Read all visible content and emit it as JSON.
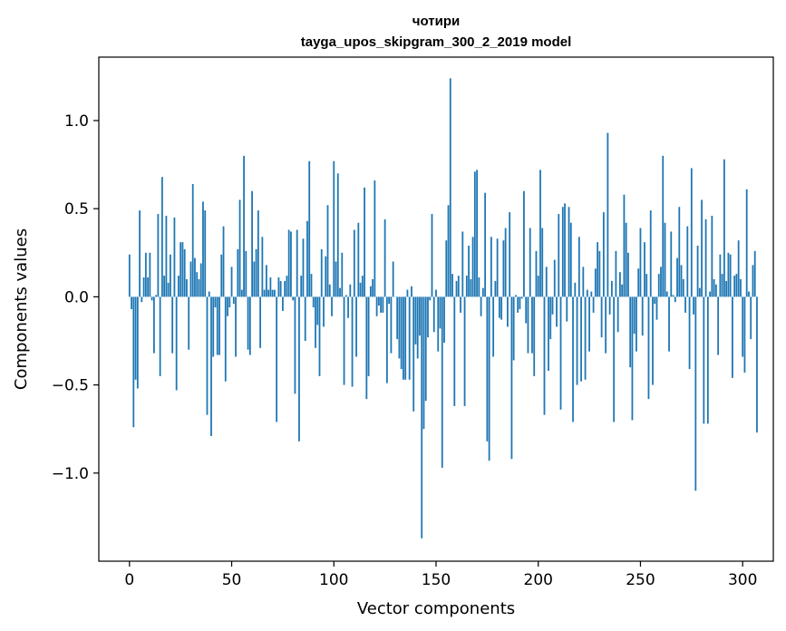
{
  "chart_data": {
    "type": "bar",
    "title": "чотири",
    "subtitle": "tayga_upos_skipgram_300_2_2019 model",
    "xlabel": "Vector components",
    "ylabel": "Components values",
    "xlim": [
      -15,
      315
    ],
    "ylim": [
      -1.5,
      1.36
    ],
    "xticks": [
      0,
      50,
      100,
      150,
      200,
      250,
      300
    ],
    "xtick_labels": [
      "0",
      "50",
      "100",
      "150",
      "200",
      "250",
      "300"
    ],
    "yticks": [
      -1.0,
      -0.5,
      0.0,
      0.5,
      1.0
    ],
    "ytick_labels": [
      "−1.0",
      "−0.5",
      "0.0",
      "0.5",
      "1.0"
    ],
    "bar_color": "#1f77b4",
    "series": [
      {
        "name": "чотири",
        "x_start": 0,
        "values": [
          0.24,
          -0.07,
          -0.74,
          -0.47,
          -0.52,
          0.49,
          -0.03,
          0.11,
          0.25,
          0.11,
          0.25,
          -0.02,
          -0.32,
          0.01,
          0.47,
          -0.45,
          0.68,
          0.12,
          0.46,
          0.08,
          0.24,
          -0.32,
          0.45,
          -0.53,
          0.12,
          0.31,
          0.31,
          0.27,
          0.1,
          -0.3,
          0.2,
          0.64,
          0.22,
          0.14,
          0.1,
          0.19,
          0.54,
          0.49,
          -0.67,
          0.03,
          -0.79,
          -0.34,
          -0.06,
          -0.33,
          -0.33,
          0.24,
          0.4,
          -0.48,
          -0.11,
          -0.06,
          0.17,
          -0.04,
          -0.34,
          0.27,
          0.55,
          0.04,
          0.8,
          0.26,
          -0.3,
          -0.33,
          0.6,
          0.2,
          0.27,
          0.49,
          -0.29,
          0.34,
          0.04,
          0.18,
          0.04,
          0.11,
          0.04,
          0.04,
          -0.71,
          0.11,
          0.09,
          -0.08,
          0.09,
          0.12,
          0.38,
          0.37,
          -0.02,
          -0.55,
          0.38,
          -0.82,
          0.12,
          0.33,
          -0.25,
          0.43,
          0.77,
          0.13,
          -0.06,
          -0.29,
          -0.16,
          -0.45,
          0.27,
          -0.17,
          0.23,
          0.52,
          0.07,
          -0.11,
          0.77,
          0.2,
          0.7,
          0.05,
          0.25,
          -0.5,
          0.01,
          -0.12,
          0.07,
          -0.51,
          0.38,
          -0.34,
          0.42,
          0.08,
          0.12,
          0.62,
          -0.58,
          -0.45,
          0.06,
          0.1,
          0.66,
          -0.11,
          -0.05,
          -0.09,
          -0.09,
          0.44,
          -0.49,
          -0.04,
          -0.32,
          0.2,
          0.0,
          -0.24,
          -0.35,
          -0.41,
          -0.47,
          -0.47,
          0.04,
          -0.47,
          0.06,
          -0.65,
          -0.27,
          -0.35,
          -0.22,
          -1.37,
          -0.75,
          -0.59,
          -0.23,
          -0.02,
          0.47,
          -0.2,
          0.04,
          -0.31,
          -0.18,
          -0.97,
          -0.26,
          0.32,
          0.52,
          1.24,
          0.13,
          -0.62,
          0.09,
          0.12,
          -0.09,
          0.37,
          -0.62,
          0.12,
          0.29,
          0.1,
          0.34,
          0.71,
          0.72,
          0.11,
          -0.11,
          0.05,
          0.59,
          -0.82,
          -0.93,
          0.34,
          -0.34,
          0.09,
          0.33,
          -0.12,
          -0.13,
          0.32,
          0.39,
          -0.17,
          0.48,
          -0.92,
          -0.36,
          0.01,
          -0.09,
          -0.07,
          -0.01,
          0.6,
          -0.15,
          -0.32,
          0.39,
          -0.32,
          -0.45,
          0.26,
          0.12,
          0.72,
          0.39,
          -0.67,
          0.17,
          -0.42,
          -0.24,
          -0.1,
          0.21,
          -0.17,
          0.47,
          -0.64,
          0.51,
          0.53,
          -0.14,
          0.51,
          0.42,
          -0.71,
          0.08,
          -0.5,
          0.34,
          -0.48,
          0.17,
          -0.47,
          0.04,
          -0.31,
          0.03,
          -0.09,
          0.16,
          0.31,
          0.26,
          -0.23,
          0.48,
          -0.32,
          0.93,
          -0.1,
          0.09,
          -0.71,
          0.26,
          -0.2,
          0.14,
          0.07,
          0.58,
          0.42,
          0.25,
          -0.4,
          -0.7,
          -0.21,
          -0.31,
          0.16,
          0.39,
          -0.22,
          0.31,
          0.13,
          -0.58,
          0.49,
          -0.5,
          -0.04,
          -0.13,
          0.13,
          0.17,
          0.8,
          0.42,
          0.03,
          -0.31,
          0.37,
          0.01,
          -0.03,
          0.22,
          0.51,
          0.18,
          0.1,
          -0.09,
          0.4,
          -0.41,
          0.73,
          -0.1,
          -1.1,
          0.29,
          0.05,
          0.55,
          -0.72,
          0.44,
          -0.72,
          0.03,
          0.46,
          0.1,
          0.07,
          -0.33,
          0.24,
          0.13,
          0.78,
          0.09,
          0.25,
          0.24,
          -0.46,
          0.12,
          0.13,
          0.32,
          0.1,
          -0.34,
          -0.43,
          0.61,
          0.03,
          -0.24,
          0.18,
          0.26,
          -0.77
        ]
      }
    ]
  }
}
